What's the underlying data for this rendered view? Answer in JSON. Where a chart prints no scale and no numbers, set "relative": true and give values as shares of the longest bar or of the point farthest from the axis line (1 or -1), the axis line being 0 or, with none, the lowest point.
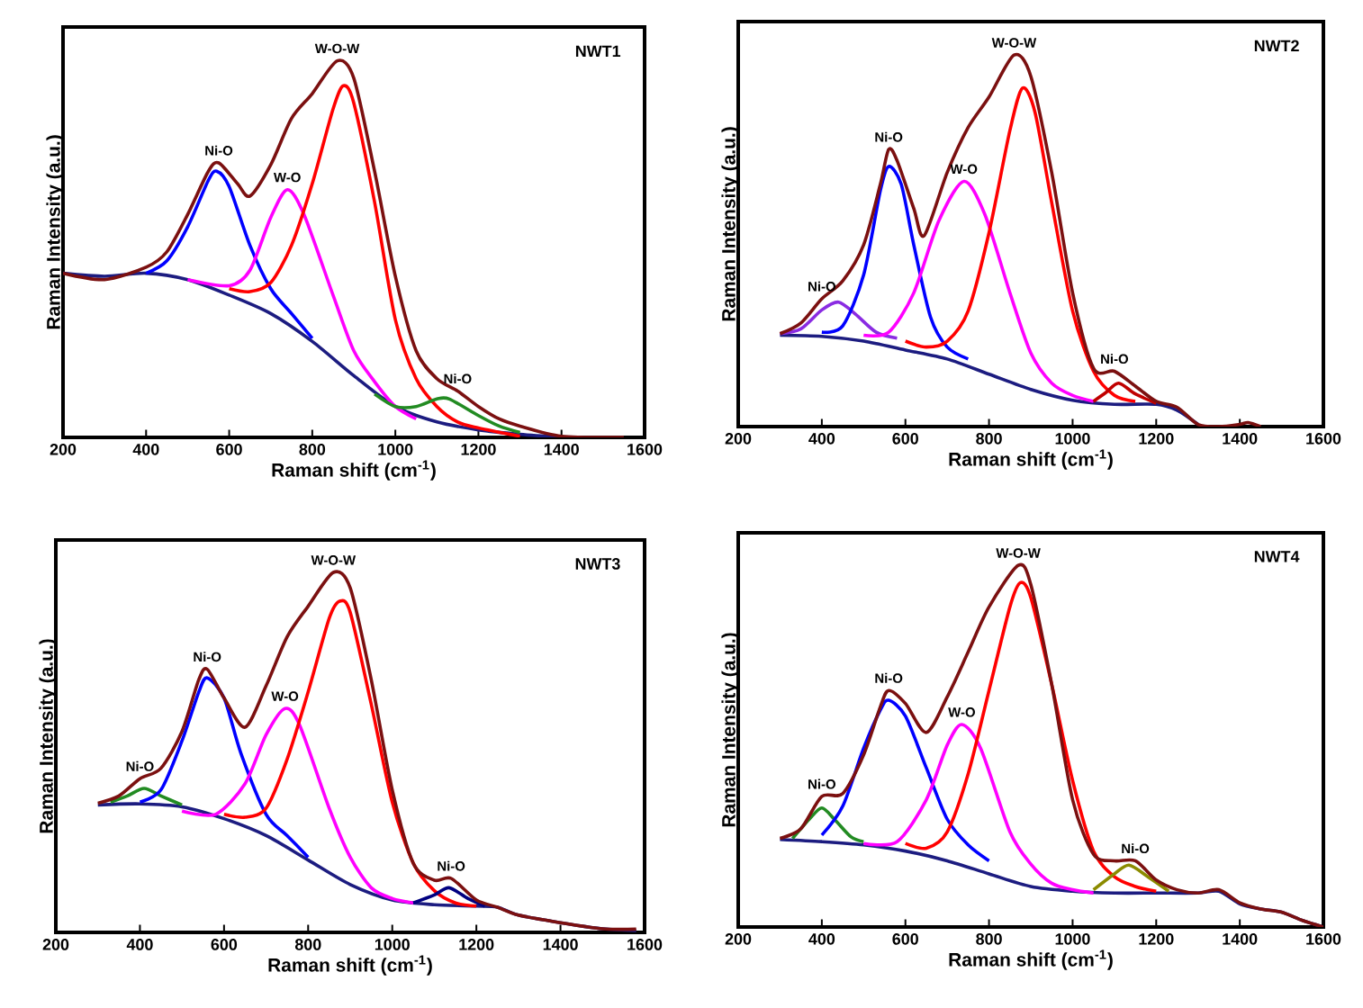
{
  "chart_data": [
    {
      "type": "line",
      "title": "NWT1",
      "xlabel": "Raman shift (cm$^{-1}$)",
      "ylabel": "Raman Intensity (a.u.)",
      "xlim": [
        200,
        1600
      ],
      "xticks": [
        200,
        400,
        600,
        800,
        1000,
        1200,
        1400,
        1600
      ],
      "relative": true,
      "annotations": [
        {
          "text": "Ni-O",
          "x": 575,
          "y": 0.729
        },
        {
          "text": "W-O",
          "x": 740,
          "y": 0.658
        },
        {
          "text": "W-O-W",
          "x": 860,
          "y": 1.0
        },
        {
          "text": "Ni-O",
          "x": 1150,
          "y": 0.123
        }
      ],
      "series": [
        {
          "color": "#1c1c80",
          "x": [
            200,
            300,
            400,
            500,
            600,
            700,
            800,
            900,
            1000,
            1100,
            1200,
            1300,
            1400
          ],
          "values": [
            0.436,
            0.428,
            0.436,
            0.419,
            0.378,
            0.329,
            0.255,
            0.164,
            0.082,
            0.041,
            0.02,
            0.008,
            0
          ]
        },
        {
          "color": "#0000ff",
          "x": [
            400,
            450,
            500,
            550,
            570,
            600,
            650,
            700,
            750,
            800
          ],
          "values": [
            0.436,
            0.469,
            0.559,
            0.683,
            0.707,
            0.666,
            0.51,
            0.395,
            0.329,
            0.263
          ]
        },
        {
          "color": "#ff00ff",
          "x": [
            500,
            600,
            650,
            700,
            740,
            780,
            850,
            900,
            950,
            1000,
            1050
          ],
          "values": [
            0.419,
            0.403,
            0.444,
            0.584,
            0.658,
            0.592,
            0.378,
            0.23,
            0.148,
            0.082,
            0.049
          ]
        },
        {
          "color": "#ff0000",
          "x": [
            600,
            650,
            700,
            750,
            800,
            850,
            875,
            900,
            950,
            1000,
            1050,
            1100,
            1150,
            1200,
            1300
          ],
          "values": [
            0.395,
            0.387,
            0.411,
            0.51,
            0.674,
            0.872,
            0.934,
            0.888,
            0.625,
            0.313,
            0.156,
            0.082,
            0.041,
            0.025,
            0.003
          ]
        },
        {
          "color": "#228b22",
          "x": [
            950,
            1000,
            1050,
            1100,
            1130,
            1200,
            1250,
            1300
          ],
          "values": [
            0.115,
            0.082,
            0.082,
            0.102,
            0.102,
            0.058,
            0.03,
            0.013
          ]
        },
        {
          "color": "#7b1010",
          "x": [
            200,
            300,
            400,
            450,
            500,
            550,
            575,
            620,
            650,
            700,
            750,
            800,
            860,
            900,
            950,
            1000,
            1050,
            1100,
            1150,
            1200,
            1250,
            1300,
            1400,
            1550
          ],
          "values": [
            0.436,
            0.419,
            0.452,
            0.493,
            0.592,
            0.707,
            0.729,
            0.674,
            0.641,
            0.724,
            0.847,
            0.913,
            1.0,
            0.954,
            0.707,
            0.428,
            0.23,
            0.156,
            0.123,
            0.082,
            0.049,
            0.03,
            0.003,
            0
          ]
        }
      ]
    },
    {
      "type": "line",
      "title": "NWT2",
      "xlabel": "Raman shift (cm$^{-1}$)",
      "ylabel": "Raman Intensity (a.u.)",
      "xlim": [
        200,
        1600
      ],
      "xticks": [
        200,
        400,
        600,
        800,
        1000,
        1200,
        1400,
        1600
      ],
      "relative": true,
      "annotations": [
        {
          "text": "Ni-O",
          "x": 400,
          "y": 0.344
        },
        {
          "text": "Ni-O",
          "x": 560,
          "y": 0.746
        },
        {
          "text": "W-O",
          "x": 740,
          "y": 0.66
        },
        {
          "text": "W-O-W",
          "x": 860,
          "y": 1.0
        },
        {
          "text": "Ni-O",
          "x": 1100,
          "y": 0.149
        }
      ],
      "series": [
        {
          "color": "#1c1c80",
          "x": [
            300,
            400,
            500,
            600,
            700,
            800,
            900,
            1000,
            1100,
            1200,
            1250,
            1300
          ],
          "values": [
            0.246,
            0.243,
            0.23,
            0.206,
            0.182,
            0.141,
            0.1,
            0.071,
            0.06,
            0.06,
            0.044,
            0.006
          ]
        },
        {
          "color": "#8a2be2",
          "x": [
            300,
            350,
            400,
            440,
            480,
            530,
            580
          ],
          "values": [
            0.25,
            0.263,
            0.314,
            0.335,
            0.303,
            0.254,
            0.238
          ]
        },
        {
          "color": "#0000ff",
          "x": [
            400,
            450,
            500,
            540,
            560,
            590,
            620,
            660,
            700,
            750
          ],
          "values": [
            0.254,
            0.271,
            0.408,
            0.635,
            0.7,
            0.652,
            0.489,
            0.295,
            0.214,
            0.182
          ]
        },
        {
          "color": "#ff00ff",
          "x": [
            500,
            560,
            620,
            680,
            740,
            790,
            850,
            900,
            950,
            1000,
            1050
          ],
          "values": [
            0.246,
            0.254,
            0.36,
            0.554,
            0.66,
            0.571,
            0.36,
            0.198,
            0.117,
            0.084,
            0.068
          ]
        },
        {
          "color": "#ff0000",
          "x": [
            600,
            650,
            700,
            750,
            800,
            850,
            880,
            910,
            950,
            1000,
            1050,
            1100,
            1150
          ],
          "values": [
            0.23,
            0.214,
            0.23,
            0.311,
            0.522,
            0.797,
            0.911,
            0.846,
            0.603,
            0.311,
            0.149,
            0.084,
            0.068
          ]
        },
        {
          "color": "#c00000",
          "x": [
            1050,
            1080,
            1110,
            1150,
            1200
          ],
          "values": [
            0.068,
            0.092,
            0.117,
            0.088,
            0.063
          ]
        },
        {
          "color": "#7b1010",
          "x": [
            300,
            350,
            400,
            450,
            500,
            540,
            560,
            580,
            620,
            645,
            700,
            750,
            800,
            860,
            900,
            950,
            1000,
            1050,
            1100,
            1150,
            1200,
            1250,
            1300,
            1350,
            1400,
            1420,
            1450
          ],
          "values": [
            0.25,
            0.279,
            0.344,
            0.392,
            0.489,
            0.652,
            0.746,
            0.716,
            0.587,
            0.514,
            0.684,
            0.805,
            0.887,
            1.0,
            0.943,
            0.684,
            0.36,
            0.157,
            0.149,
            0.109,
            0.068,
            0.052,
            0.006,
            0,
            0.006,
            0.011,
            0
          ]
        }
      ]
    },
    {
      "type": "line",
      "title": "NWT3",
      "xlabel": "Raman shift (cm$^{-1}$)",
      "ylabel": "Raman Intensity (a.u.)",
      "xlim": [
        200,
        1600
      ],
      "xticks": [
        200,
        400,
        600,
        800,
        1000,
        1200,
        1400,
        1600
      ],
      "relative": true,
      "annotations": [
        {
          "text": "Ni-O",
          "x": 400,
          "y": 0.427
        },
        {
          "text": "Ni-O",
          "x": 560,
          "y": 0.731
        },
        {
          "text": "W-O",
          "x": 745,
          "y": 0.622
        },
        {
          "text": "W-O-W",
          "x": 860,
          "y": 1.0
        },
        {
          "text": "Ni-O",
          "x": 1140,
          "y": 0.15
        }
      ],
      "series": [
        {
          "color": "#1c1c80",
          "x": [
            300,
            400,
            500,
            600,
            700,
            800,
            900,
            1000,
            1100,
            1200,
            1250,
            1300,
            1400,
            1500,
            1580
          ],
          "values": [
            0.354,
            0.357,
            0.349,
            0.316,
            0.269,
            0.201,
            0.133,
            0.09,
            0.077,
            0.073,
            0.07,
            0.048,
            0.027,
            0.01,
            0.005
          ]
        },
        {
          "color": "#228b22",
          "x": [
            330,
            370,
            410,
            450,
            500
          ],
          "values": [
            0.362,
            0.379,
            0.4,
            0.379,
            0.354
          ]
        },
        {
          "color": "#0000ff",
          "x": [
            400,
            450,
            500,
            540,
            560,
            600,
            640,
            700,
            750,
            800
          ],
          "values": [
            0.362,
            0.396,
            0.532,
            0.668,
            0.707,
            0.651,
            0.498,
            0.328,
            0.269,
            0.209
          ]
        },
        {
          "color": "#ff00ff",
          "x": [
            500,
            580,
            650,
            700,
            745,
            780,
            850,
            900,
            950,
            1000,
            1050
          ],
          "values": [
            0.337,
            0.328,
            0.413,
            0.549,
            0.622,
            0.575,
            0.345,
            0.209,
            0.124,
            0.094,
            0.082
          ]
        },
        {
          "color": "#ff0000",
          "x": [
            600,
            650,
            700,
            750,
            800,
            850,
            875,
            900,
            950,
            1000,
            1050,
            1100,
            1150,
            1200
          ],
          "values": [
            0.328,
            0.32,
            0.345,
            0.481,
            0.668,
            0.872,
            0.92,
            0.889,
            0.634,
            0.362,
            0.192,
            0.116,
            0.082,
            0.073
          ]
        },
        {
          "color": "#000080",
          "x": [
            1050,
            1100,
            1135,
            1180,
            1220
          ],
          "values": [
            0.082,
            0.104,
            0.124,
            0.094,
            0.073
          ]
        },
        {
          "color": "#7b1010",
          "x": [
            300,
            350,
            400,
            450,
            500,
            540,
            560,
            600,
            650,
            700,
            750,
            800,
            860,
            900,
            950,
            1000,
            1050,
            1100,
            1140,
            1200,
            1250,
            1300,
            1400,
            1500,
            1580
          ],
          "values": [
            0.359,
            0.379,
            0.427,
            0.456,
            0.558,
            0.702,
            0.731,
            0.651,
            0.57,
            0.685,
            0.821,
            0.906,
            1.0,
            0.957,
            0.702,
            0.396,
            0.192,
            0.145,
            0.15,
            0.09,
            0.07,
            0.048,
            0.027,
            0.01,
            0.009
          ]
        }
      ]
    },
    {
      "type": "line",
      "title": "NWT4",
      "xlabel": "Raman shift (cm$^{-1}$)",
      "ylabel": "Raman Intensity (a.u.)",
      "xlim": [
        200,
        1600
      ],
      "xticks": [
        200,
        400,
        600,
        800,
        1000,
        1200,
        1400,
        1600
      ],
      "relative": true,
      "annotations": [
        {
          "text": "Ni-O",
          "x": 400,
          "y": 0.361
        },
        {
          "text": "Ni-O",
          "x": 560,
          "y": 0.654
        },
        {
          "text": "W-O",
          "x": 735,
          "y": 0.56
        },
        {
          "text": "W-O-W",
          "x": 870,
          "y": 1.0
        },
        {
          "text": "Ni-O",
          "x": 1150,
          "y": 0.183
        }
      ],
      "series": [
        {
          "color": "#1c1c80",
          "x": [
            300,
            400,
            500,
            600,
            700,
            800,
            900,
            1000,
            1100,
            1200,
            1300,
            1350,
            1400,
            1450,
            1500,
            1550,
            1600
          ],
          "values": [
            0.242,
            0.236,
            0.227,
            0.21,
            0.183,
            0.147,
            0.112,
            0.099,
            0.094,
            0.094,
            0.094,
            0.099,
            0.064,
            0.05,
            0.041,
            0.018,
            0
          ]
        },
        {
          "color": "#228b22",
          "x": [
            330,
            370,
            400,
            430,
            470,
            500
          ],
          "values": [
            0.245,
            0.298,
            0.329,
            0.298,
            0.249,
            0.236
          ]
        },
        {
          "color": "#0000ff",
          "x": [
            400,
            450,
            500,
            540,
            560,
            600,
            650,
            700,
            750,
            800
          ],
          "values": [
            0.254,
            0.334,
            0.494,
            0.6,
            0.627,
            0.583,
            0.44,
            0.298,
            0.227,
            0.183
          ]
        },
        {
          "color": "#ff00ff",
          "x": [
            500,
            580,
            650,
            700,
            735,
            780,
            850,
            900,
            950,
            1000,
            1050
          ],
          "values": [
            0.231,
            0.236,
            0.352,
            0.503,
            0.56,
            0.494,
            0.263,
            0.174,
            0.121,
            0.103,
            0.094
          ]
        },
        {
          "color": "#ff0000",
          "x": [
            600,
            650,
            700,
            750,
            800,
            850,
            875,
            900,
            950,
            1000,
            1050,
            1100,
            1150,
            1200
          ],
          "values": [
            0.231,
            0.218,
            0.263,
            0.423,
            0.654,
            0.885,
            0.952,
            0.911,
            0.671,
            0.405,
            0.21,
            0.139,
            0.112,
            0.099
          ]
        },
        {
          "color": "#8b8b00",
          "x": [
            1050,
            1100,
            1135,
            1180,
            1230
          ],
          "values": [
            0.103,
            0.147,
            0.171,
            0.139,
            0.099
          ]
        },
        {
          "color": "#7b1010",
          "x": [
            300,
            350,
            400,
            450,
            500,
            540,
            560,
            600,
            650,
            700,
            750,
            800,
            870,
            900,
            950,
            1000,
            1050,
            1100,
            1150,
            1200,
            1250,
            1300,
            1350,
            1400,
            1450,
            1500,
            1550,
            1600
          ],
          "values": [
            0.245,
            0.272,
            0.361,
            0.369,
            0.476,
            0.609,
            0.654,
            0.618,
            0.538,
            0.636,
            0.76,
            0.885,
            1.0,
            0.947,
            0.671,
            0.352,
            0.201,
            0.183,
            0.183,
            0.13,
            0.103,
            0.094,
            0.103,
            0.067,
            0.05,
            0.041,
            0.018,
            0
          ]
        }
      ]
    }
  ]
}
